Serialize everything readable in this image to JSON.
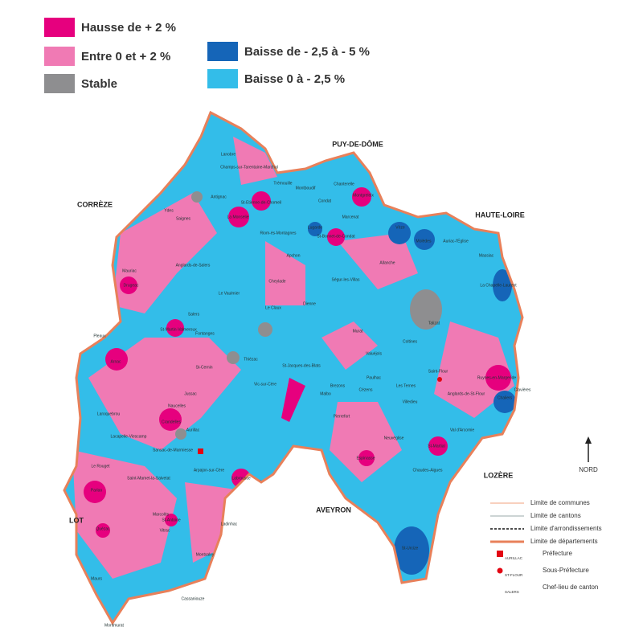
{
  "legend": [
    {
      "label": "Hausse de + 2 %",
      "color": "#e6007e"
    },
    {
      "label": "Entre 0 et + 2 %",
      "color": "#f07ab4"
    },
    {
      "label": "Stable",
      "color": "#8e8e90"
    },
    {
      "label": "Baisse de - 2,5 à - 5 %",
      "color": "#1565b8"
    },
    {
      "label": "Baisse 0 à - 2,5 %",
      "color": "#33bde9"
    }
  ],
  "departments": [
    "PUY-DE-DÔME",
    "HAUTE-LOIRE",
    "CORRÈZE",
    "LOT",
    "AVEYRON",
    "LOZÈRE"
  ],
  "north": "NORD",
  "line_legend": [
    "Limite de communes",
    "Limite de cantons",
    "Limite d'arrondissements",
    "Limite de départements"
  ],
  "symbol_legend": [
    {
      "sample": "AURILLAC",
      "label": "Préfecture"
    },
    {
      "sample": "ST-FLOUR",
      "label": "Sous-Préfecture"
    },
    {
      "sample": "SALERS",
      "label": "Chef-lieu de canton"
    }
  ],
  "communes": [
    "Lanobre",
    "Champs-sur-Tarentaine-Marchal",
    "Trémouille",
    "Montboudif",
    "Chanterelle",
    "Condat",
    "Montgreleix",
    "St-Etienne-de-Chomeil",
    "La Monselie",
    "Riom-ès-Montagnes",
    "Marcenat",
    "Lugarde",
    "St-Bonnet-de-Condat",
    "Vèze",
    "Molèdes",
    "Auriac-l'Église",
    "Allanche",
    "Massiac",
    "La Chapelle-Laurent",
    "Mauriac",
    "Drugeac",
    "Salers",
    "Anglards-de-Salers",
    "Le Vaulmier",
    "Le Claux",
    "Dienne",
    "Murat",
    "Talizat",
    "Saint-Flour",
    "Ruynes-en-Margeride",
    "Chaliers",
    "Arnac",
    "Pleaux",
    "St-Martin-Valmeroux",
    "Fontanges",
    "St-Cernin",
    "Jussac",
    "Crandelles",
    "Aurillac",
    "Vic-sur-Cère",
    "Thiézac",
    "St-Jacques-des-Blats",
    "Neuvéglise",
    "Pierrefort",
    "Chaudes-Aigues",
    "St-Urcize",
    "St-Martial",
    "Espinasse",
    "Labrousse",
    "Arpajon-sur-Cère",
    "Maurs",
    "Montsalvy",
    "Montmurat",
    "Parlan",
    "Quézac",
    "St-Antoine",
    "Ladinhac",
    "Cassaniouze",
    "Le Rouget",
    "Laroquebrou",
    "Saint-Mamet-la-Salvetat",
    "Marcolès",
    "Sansac-de-Marmiesse",
    "Naucelles",
    "Vitrac",
    "Lacapelle-Viescamp",
    "Ydes",
    "Saignes",
    "Antignac",
    "Apchon",
    "Cheylade",
    "Ségur-les-Villas",
    "Coltines",
    "Valuéjols",
    "Paulhac",
    "Brezons",
    "Malbo",
    "Cézens",
    "Les Ternes",
    "Villedieu",
    "Anglards-de-St-Flour",
    "Clavières",
    "Val d'Arcomie"
  ]
}
